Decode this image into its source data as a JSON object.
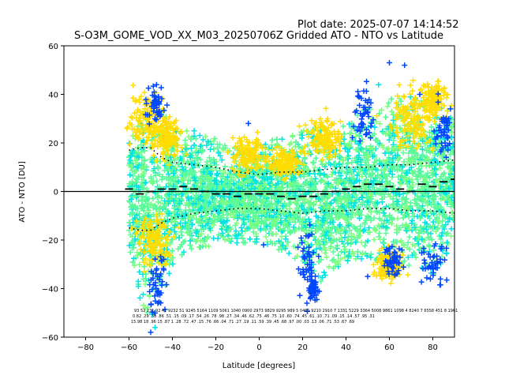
{
  "plot_date": "Plot date: 2025-07-07 14:14:52",
  "chart_data": {
    "type": "scatter",
    "title": "S-O3M_GOME_VOD_XX_M03_20250706Z Gridded ATO - NTO vs Latitude",
    "xlabel": "Latitude [degrees]",
    "ylabel": "ATO - NTO [DU]",
    "xlim": [
      -90,
      90
    ],
    "ylim": [
      -60,
      60
    ],
    "xticks": [
      -80,
      -60,
      -40,
      -20,
      0,
      20,
      40,
      60,
      80
    ],
    "yticks": [
      -60,
      -40,
      -20,
      0,
      20,
      40,
      60
    ],
    "x_tick_labels": [
      "−80",
      "−60",
      "−40",
      "−20",
      "0",
      "20",
      "40",
      "60",
      "80"
    ],
    "y_tick_labels": [
      "−60",
      "−40",
      "−20",
      "0",
      "20",
      "40",
      "60"
    ],
    "zero_line": 0,
    "colors": {
      "dense": "#5dfa9a",
      "teal": "#00e3e6",
      "yellow": "#ffdd00",
      "blue": "#0046ff",
      "green_light": "#7dff7d",
      "axis": "#000000"
    },
    "envelope": [
      {
        "lat": -60,
        "lo": -25,
        "hi": 20
      },
      {
        "lat": -55,
        "lo": -45,
        "hi": 30
      },
      {
        "lat": -50,
        "lo": -55,
        "hi": 38
      },
      {
        "lat": -45,
        "lo": -45,
        "hi": 36
      },
      {
        "lat": -40,
        "lo": -30,
        "hi": 27
      },
      {
        "lat": -30,
        "lo": -24,
        "hi": 24
      },
      {
        "lat": -20,
        "lo": -22,
        "hi": 22
      },
      {
        "lat": -10,
        "lo": -22,
        "hi": 18
      },
      {
        "lat": 0,
        "lo": -22,
        "hi": 20
      },
      {
        "lat": 10,
        "lo": -25,
        "hi": 22
      },
      {
        "lat": 20,
        "lo": -30,
        "hi": 25
      },
      {
        "lat": 25,
        "lo": -42,
        "hi": 28
      },
      {
        "lat": 30,
        "lo": -35,
        "hi": 25
      },
      {
        "lat": 40,
        "lo": -30,
        "hi": 28
      },
      {
        "lat": 50,
        "lo": -28,
        "hi": 35
      },
      {
        "lat": 60,
        "lo": -30,
        "hi": 38
      },
      {
        "lat": 70,
        "lo": -33,
        "hi": 40
      },
      {
        "lat": 80,
        "lo": -35,
        "hi": 42
      },
      {
        "lat": 85,
        "lo": -30,
        "hi": 38
      },
      {
        "lat": 90,
        "lo": -15,
        "hi": 28
      }
    ],
    "bin_means": [
      {
        "lat": -60,
        "mean": 1
      },
      {
        "lat": -55,
        "mean": -1
      },
      {
        "lat": -50,
        "mean": 0
      },
      {
        "lat": -45,
        "mean": 1
      },
      {
        "lat": -40,
        "mean": 1
      },
      {
        "lat": -35,
        "mean": 2
      },
      {
        "lat": -30,
        "mean": 1
      },
      {
        "lat": -25,
        "mean": 0
      },
      {
        "lat": -20,
        "mean": -1
      },
      {
        "lat": -15,
        "mean": -1
      },
      {
        "lat": -10,
        "mean": -2
      },
      {
        "lat": -5,
        "mean": -1
      },
      {
        "lat": 0,
        "mean": -1
      },
      {
        "lat": 5,
        "mean": -1
      },
      {
        "lat": 10,
        "mean": -2
      },
      {
        "lat": 15,
        "mean": -3
      },
      {
        "lat": 20,
        "mean": -2
      },
      {
        "lat": 25,
        "mean": -2
      },
      {
        "lat": 30,
        "mean": -1
      },
      {
        "lat": 35,
        "mean": 0
      },
      {
        "lat": 40,
        "mean": 1
      },
      {
        "lat": 45,
        "mean": 2
      },
      {
        "lat": 50,
        "mean": 3
      },
      {
        "lat": 55,
        "mean": 3
      },
      {
        "lat": 60,
        "mean": 2
      },
      {
        "lat": 65,
        "mean": 1
      },
      {
        "lat": 70,
        "mean": 0
      },
      {
        "lat": 75,
        "mean": 3
      },
      {
        "lat": 80,
        "mean": 2
      },
      {
        "lat": 85,
        "mean": 4
      },
      {
        "lat": 90,
        "mean": 5
      }
    ],
    "bin_std_hi": [
      {
        "lat": -60,
        "v": 17
      },
      {
        "lat": -55,
        "v": 18
      },
      {
        "lat": -50,
        "v": 18
      },
      {
        "lat": -45,
        "v": 14
      },
      {
        "lat": -40,
        "v": 12
      },
      {
        "lat": -30,
        "v": 11
      },
      {
        "lat": -20,
        "v": 10
      },
      {
        "lat": -10,
        "v": 8
      },
      {
        "lat": 0,
        "v": 7
      },
      {
        "lat": 10,
        "v": 8
      },
      {
        "lat": 20,
        "v": 8
      },
      {
        "lat": 30,
        "v": 9
      },
      {
        "lat": 40,
        "v": 10
      },
      {
        "lat": 50,
        "v": 10
      },
      {
        "lat": 60,
        "v": 11
      },
      {
        "lat": 70,
        "v": 11
      },
      {
        "lat": 80,
        "v": 12
      },
      {
        "lat": 90,
        "v": 13
      }
    ],
    "bin_std_lo": [
      {
        "lat": -60,
        "v": -15
      },
      {
        "lat": -55,
        "v": -16
      },
      {
        "lat": -50,
        "v": -16
      },
      {
        "lat": -45,
        "v": -13
      },
      {
        "lat": -40,
        "v": -11
      },
      {
        "lat": -30,
        "v": -9
      },
      {
        "lat": -20,
        "v": -8
      },
      {
        "lat": -10,
        "v": -7
      },
      {
        "lat": 0,
        "v": -7
      },
      {
        "lat": 10,
        "v": -8
      },
      {
        "lat": 20,
        "v": -9
      },
      {
        "lat": 30,
        "v": -8
      },
      {
        "lat": 40,
        "v": -8
      },
      {
        "lat": 50,
        "v": -7
      },
      {
        "lat": 60,
        "v": -7
      },
      {
        "lat": 70,
        "v": -8
      },
      {
        "lat": 80,
        "v": -8
      },
      {
        "lat": 90,
        "v": -9
      }
    ],
    "bin_stat_rows": [
      "93 52 231 92 41 9232 51 9245 5164 1109 5061 1040 0900 2973 9829 9295 989 5 0461 9210 2910 7 1331 5229 3364 5008 9861 1098 4 8240 7 6558 451 8 1961",
      "0.82 .29 .38 .86 .51 .15 .09 .17 .54 .26 .78 .98 .27 .34 .46 .62 .75 .46 .75 .10 .60 .74 .45 .61 .10 .71 .09 .15 .14 .57 .95 .31",
      "15.98 18 .96 15 .87 1 .28 .72 .47 .15 .76 .66 .04 .71 .27 .19 .11 .59 .39 .45 .68 .97 .00 .03 .13 .06 .71 .53 .67 .69"
    ]
  }
}
